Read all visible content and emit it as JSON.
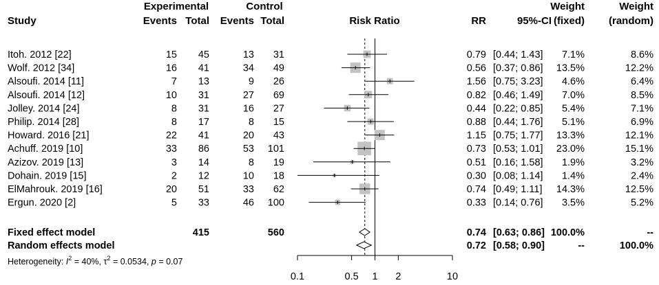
{
  "colors": {
    "box": "#c3c3c3",
    "line": "#000000",
    "text": "#000000"
  },
  "headers": {
    "experimental": "Experimental",
    "control": "Control",
    "study": "Study",
    "events_exp": "Events",
    "total_exp": "Total",
    "events_ctl": "Events",
    "total_ctl": "Total",
    "risk_ratio": "Risk Ratio",
    "rr": "RR",
    "ci": "95%-CI",
    "weight1": "Weight",
    "weight1_sub": "(fixed)",
    "weight2": "Weight",
    "weight2_sub": "(random)"
  },
  "chart_data": {
    "type": "forest",
    "title": "Risk Ratio",
    "xscale": "log",
    "xlim": [
      0.1,
      10
    ],
    "xticks": [
      "0.1",
      "0.5",
      "1",
      "2",
      "10"
    ],
    "studies": [
      {
        "study": "Itoh. 2012  [22]",
        "ee": "15",
        "te": "45",
        "ec": "13",
        "tc": "31",
        "rr": 0.79,
        "lo": 0.44,
        "hi": 1.43,
        "rr_text": "0.79",
        "ci_text": "[0.44; 1.43]",
        "wf_text": "7.1%",
        "wr_text": "8.6%",
        "weight": 7.1
      },
      {
        "study": "Wolf. 2012  [34]",
        "ee": "16",
        "te": "41",
        "ec": "34",
        "tc": "49",
        "rr": 0.56,
        "lo": 0.37,
        "hi": 0.86,
        "rr_text": "0.56",
        "ci_text": "[0.37; 0.86]",
        "wf_text": "13.5%",
        "wr_text": "12.2%",
        "weight": 13.5
      },
      {
        "study": "Alsoufi. 2014  [11]",
        "ee": "7",
        "te": "13",
        "ec": "9",
        "tc": "26",
        "rr": 1.56,
        "lo": 0.75,
        "hi": 3.23,
        "rr_text": "1.56",
        "ci_text": "[0.75; 3.23]",
        "wf_text": "4.6%",
        "wr_text": "6.4%",
        "weight": 4.6
      },
      {
        "study": "Alsoufi. 2014  [12]",
        "ee": "10",
        "te": "31",
        "ec": "27",
        "tc": "69",
        "rr": 0.82,
        "lo": 0.46,
        "hi": 1.49,
        "rr_text": "0.82",
        "ci_text": "[0.46; 1.49]",
        "wf_text": "7.0%",
        "wr_text": "8.5%",
        "weight": 7.0
      },
      {
        "study": "Jolley. 2014  [24]",
        "ee": "8",
        "te": "31",
        "ec": "16",
        "tc": "27",
        "rr": 0.44,
        "lo": 0.22,
        "hi": 0.85,
        "rr_text": "0.44",
        "ci_text": "[0.22; 0.85]",
        "wf_text": "5.4%",
        "wr_text": "7.1%",
        "weight": 5.4
      },
      {
        "study": "Philip. 2014  [28]",
        "ee": "8",
        "te": "17",
        "ec": "8",
        "tc": "15",
        "rr": 0.88,
        "lo": 0.44,
        "hi": 1.76,
        "rr_text": "0.88",
        "ci_text": "[0.44; 1.76]",
        "wf_text": "5.1%",
        "wr_text": "6.9%",
        "weight": 5.1
      },
      {
        "study": "Howard. 2016  [21]",
        "ee": "22",
        "te": "41",
        "ec": "20",
        "tc": "43",
        "rr": 1.15,
        "lo": 0.75,
        "hi": 1.77,
        "rr_text": "1.15",
        "ci_text": "[0.75; 1.77]",
        "wf_text": "13.3%",
        "wr_text": "12.1%",
        "weight": 13.3
      },
      {
        "study": "Achuff. 2019  [10]",
        "ee": "33",
        "te": "86",
        "ec": "53",
        "tc": "101",
        "rr": 0.73,
        "lo": 0.53,
        "hi": 1.01,
        "rr_text": "0.73",
        "ci_text": "[0.53; 1.01]",
        "wf_text": "23.0%",
        "wr_text": "15.1%",
        "weight": 23.0
      },
      {
        "study": "Azizov. 2019  [13]",
        "ee": "3",
        "te": "14",
        "ec": "8",
        "tc": "19",
        "rr": 0.51,
        "lo": 0.16,
        "hi": 1.58,
        "rr_text": "0.51",
        "ci_text": "[0.16; 1.58]",
        "wf_text": "1.9%",
        "wr_text": "3.2%",
        "weight": 1.9
      },
      {
        "study": "Dohain. 2019  [15]",
        "ee": "2",
        "te": "12",
        "ec": "10",
        "tc": "18",
        "rr": 0.3,
        "lo": 0.08,
        "hi": 1.14,
        "rr_text": "0.30",
        "ci_text": "[0.08; 1.14]",
        "wf_text": "1.4%",
        "wr_text": "2.4%",
        "weight": 1.4
      },
      {
        "study": "ElMahrouk. 2019  [16]",
        "ee": "20",
        "te": "51",
        "ec": "33",
        "tc": "62",
        "rr": 0.74,
        "lo": 0.49,
        "hi": 1.11,
        "rr_text": "0.74",
        "ci_text": "[0.49; 1.11]",
        "wf_text": "14.3%",
        "wr_text": "12.5%",
        "weight": 14.3
      },
      {
        "study": "Ergun. 2020  [2]",
        "ee": "5",
        "te": "33",
        "ec": "46",
        "tc": "100",
        "rr": 0.33,
        "lo": 0.14,
        "hi": 0.76,
        "rr_text": "0.33",
        "ci_text": "[0.14; 0.76]",
        "wf_text": "3.5%",
        "wr_text": "5.2%",
        "weight": 3.5
      }
    ],
    "fixed": {
      "label": "Fixed effect model",
      "te": "415",
      "tc": "560",
      "rr": 0.74,
      "lo": 0.63,
      "hi": 0.86,
      "rr_text": "0.74",
      "ci_text": "[0.63; 0.86]",
      "wf_text": "100.0%",
      "wr_text": "--"
    },
    "random": {
      "label": "Random effects model",
      "rr": 0.72,
      "lo": 0.58,
      "hi": 0.9,
      "rr_text": "0.72",
      "ci_text": "[0.58; 0.90]",
      "wf_text": "--",
      "wr_text": "100.0%"
    },
    "heterogeneity": {
      "prefix": "Heterogeneity: ",
      "i2_symbol": "I",
      "sup2": "2",
      "i2_value": " = 40%, ",
      "tau_symbol": "τ",
      "tau_value": " = 0.0534, ",
      "p_symbol": "p",
      "p_value": " = 0.07"
    }
  }
}
